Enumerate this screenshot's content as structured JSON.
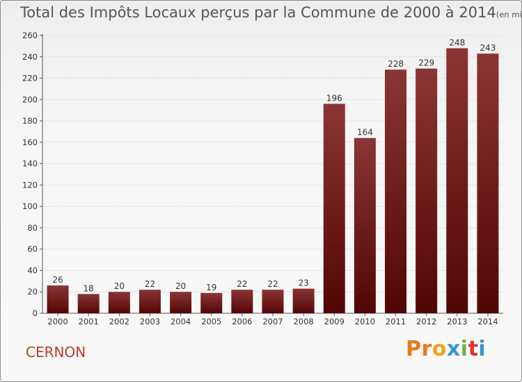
{
  "title": "Total des Impôts Locaux perçus par la Commune de 2000 à 2014",
  "title_unit": "(en milliers d'€)",
  "commune": "CERNON",
  "logo_text": "Proxiti",
  "colors": {
    "bar_top": "#8b3535",
    "bar_bottom": "#520505",
    "title": "#555555",
    "commune": "#c0392b",
    "grid": "#e4e4e4",
    "logo": [
      "#e77a1b",
      "#e77a1b",
      "#f2a21b",
      "#3a93d3",
      "#6cb544",
      "#e2312b",
      "#3a93d3"
    ]
  },
  "chart_data": {
    "type": "bar",
    "categories": [
      "2000",
      "2001",
      "2002",
      "2003",
      "2004",
      "2005",
      "2006",
      "2007",
      "2008",
      "2009",
      "2010",
      "2011",
      "2012",
      "2013",
      "2014"
    ],
    "values": [
      26,
      18,
      20,
      22,
      20,
      19,
      22,
      22,
      23,
      196,
      164,
      228,
      229,
      248,
      243
    ],
    "data_labels": [
      "26",
      "18",
      "20",
      "22",
      "20",
      "19",
      "22",
      "22",
      "23",
      "196",
      "164",
      "228",
      "229",
      "248",
      "243"
    ],
    "ylim": [
      0,
      260
    ],
    "yticks": [
      0,
      20,
      40,
      60,
      80,
      100,
      120,
      140,
      160,
      180,
      200,
      220,
      240,
      260
    ],
    "grid": true,
    "xlabel": "",
    "ylabel": ""
  }
}
